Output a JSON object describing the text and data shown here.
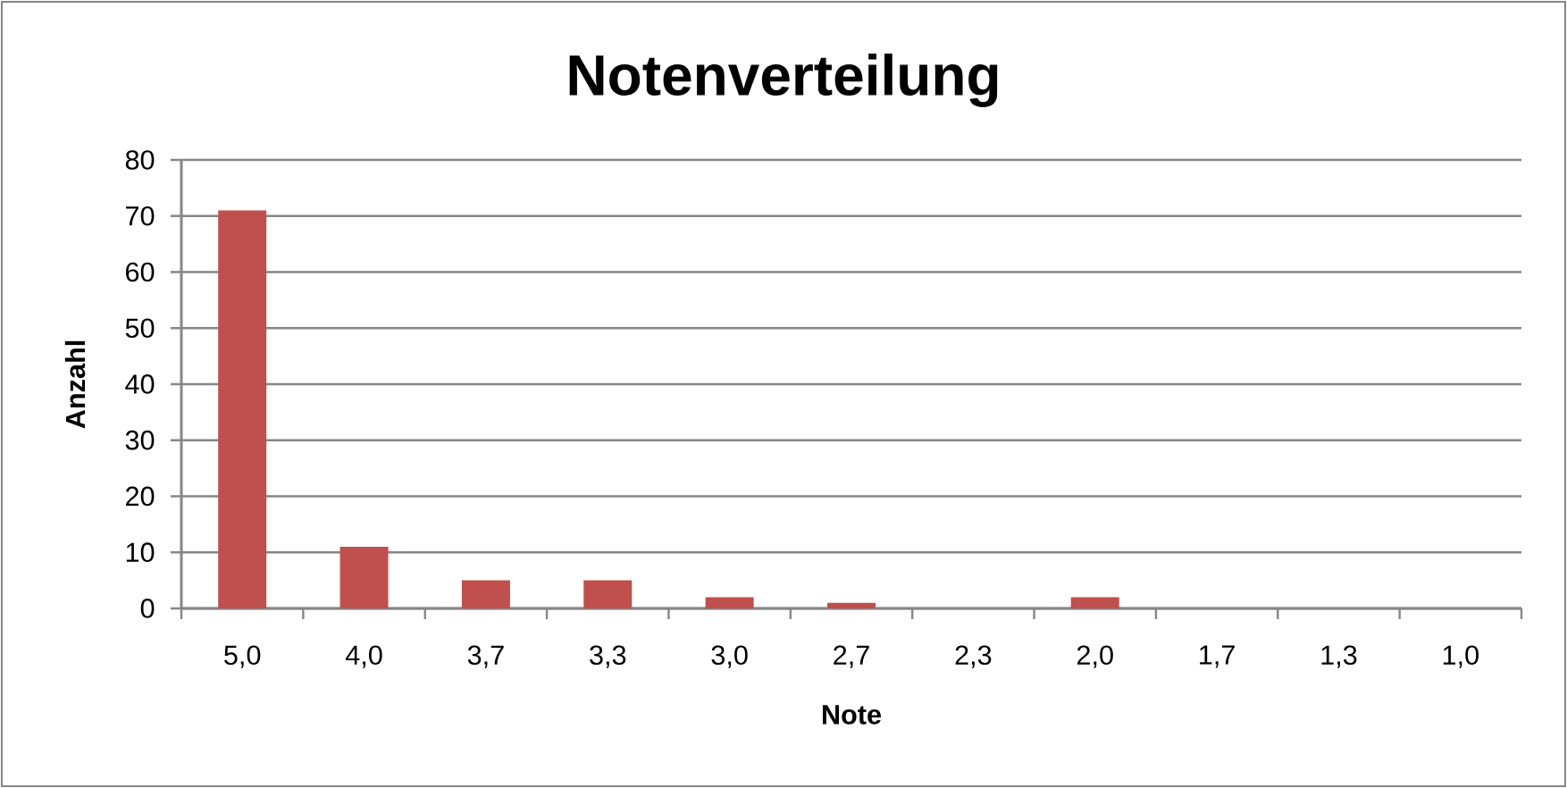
{
  "chart_data": {
    "type": "bar",
    "title": "Notenverteilung",
    "xlabel": "Note",
    "ylabel": "Anzahl",
    "categories": [
      "5,0",
      "4,0",
      "3,7",
      "3,3",
      "3,0",
      "2,7",
      "2,3",
      "2,0",
      "1,7",
      "1,3",
      "1,0"
    ],
    "values": [
      71,
      11,
      5,
      5,
      2,
      1,
      0,
      2,
      0,
      0,
      0
    ],
    "color": "#c0504d",
    "ylim": [
      0,
      80
    ],
    "yticks": [
      0,
      10,
      20,
      30,
      40,
      50,
      60,
      70,
      80
    ],
    "grid": "y"
  }
}
